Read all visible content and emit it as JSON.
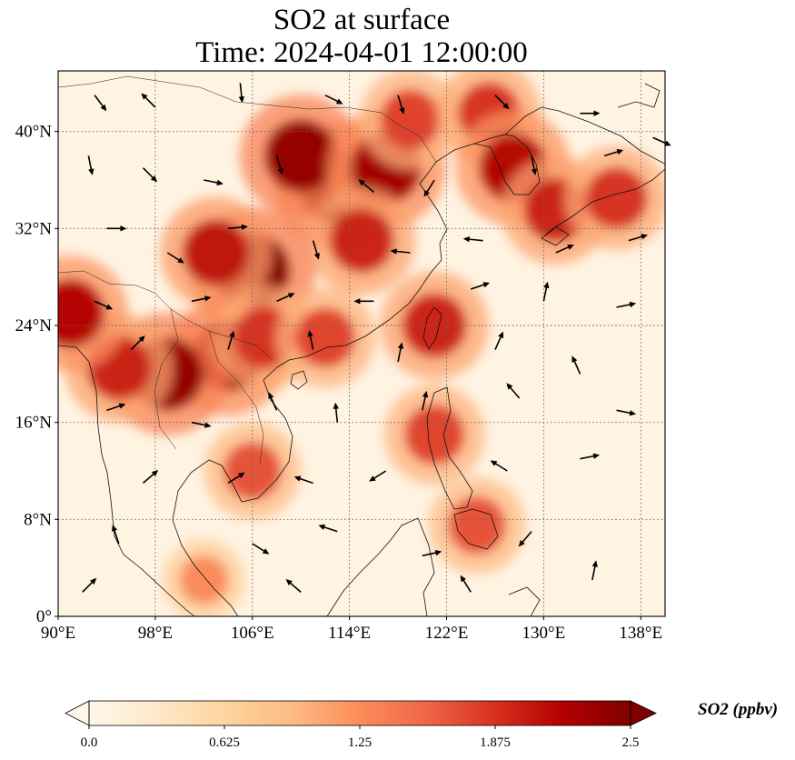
{
  "chart_data": {
    "type": "heatmap",
    "title": "SO2 at surface",
    "subtitle": "Time: 2024-04-01 12:00:00",
    "projection": "plate-carree map with coastlines, country borders and wind vectors",
    "x_axis": {
      "ticks": [
        90,
        98,
        106,
        114,
        122,
        130,
        138
      ],
      "tick_labels": [
        "90°E",
        "98°E",
        "106°E",
        "114°E",
        "122°E",
        "130°E",
        "138°E"
      ],
      "range": [
        90,
        140
      ]
    },
    "y_axis": {
      "ticks": [
        0,
        8,
        16,
        24,
        32,
        40
      ],
      "tick_labels": [
        "0°",
        "8°N",
        "16°N",
        "24°N",
        "32°N",
        "40°N"
      ],
      "range": [
        0,
        45
      ]
    },
    "grid": "dotted gray gridlines at tick positions",
    "colorbar": {
      "label": "SO2 (ppbv)",
      "colormap": "OrRd",
      "range": [
        0.0,
        2.5
      ],
      "ticks": [
        0.0,
        0.625,
        1.25,
        1.875,
        2.5
      ],
      "tick_labels": [
        "0.0",
        "0.625",
        "1.25",
        "1.875",
        "2.5"
      ],
      "extend": "both",
      "colors": [
        "#fff7ec",
        "#fee8c8",
        "#fdd49e",
        "#fdbb84",
        "#fc8d59",
        "#ef6548",
        "#d7301f",
        "#b30000",
        "#7f0000"
      ]
    },
    "hotspots": [
      {
        "lon": 113,
        "lat": 35.5,
        "value": 2.5
      },
      {
        "lon": 110,
        "lat": 38,
        "value": 2.4
      },
      {
        "lon": 117,
        "lat": 37,
        "value": 2.3
      },
      {
        "lon": 115,
        "lat": 31,
        "value": 2.0
      },
      {
        "lon": 106,
        "lat": 28.5,
        "value": 2.5
      },
      {
        "lon": 103,
        "lat": 30,
        "value": 2.1
      },
      {
        "lon": 104,
        "lat": 21.5,
        "value": 2.3
      },
      {
        "lon": 99,
        "lat": 20,
        "value": 2.4
      },
      {
        "lon": 95,
        "lat": 20.5,
        "value": 2.0
      },
      {
        "lon": 91,
        "lat": 25,
        "value": 2.2
      },
      {
        "lon": 107,
        "lat": 23,
        "value": 1.9
      },
      {
        "lon": 112,
        "lat": 23,
        "value": 1.8
      },
      {
        "lon": 119,
        "lat": 41,
        "value": 1.8
      },
      {
        "lon": 125.5,
        "lat": 41.5,
        "value": 1.9
      },
      {
        "lon": 127.5,
        "lat": 37,
        "value": 2.2
      },
      {
        "lon": 131,
        "lat": 33.5,
        "value": 2.0
      },
      {
        "lon": 136,
        "lat": 34.5,
        "value": 1.9
      },
      {
        "lon": 121,
        "lat": 24,
        "value": 2.0
      },
      {
        "lon": 121,
        "lat": 15,
        "value": 1.8
      },
      {
        "lon": 124.5,
        "lat": 7.5,
        "value": 1.7
      },
      {
        "lon": 106,
        "lat": 12,
        "value": 1.7
      },
      {
        "lon": 102,
        "lat": 3,
        "value": 1.3
      }
    ],
    "wind_vectors": [
      {
        "lon": 93,
        "lat": 43,
        "u": 0.6,
        "v": -0.8
      },
      {
        "lon": 98,
        "lat": 42,
        "u": -0.5,
        "v": 0.5
      },
      {
        "lon": 105,
        "lat": 44,
        "u": 0.1,
        "v": -1.0
      },
      {
        "lon": 112,
        "lat": 43,
        "u": 0.8,
        "v": -0.4
      },
      {
        "lon": 118,
        "lat": 43,
        "u": 0.3,
        "v": -1.0
      },
      {
        "lon": 126,
        "lat": 43,
        "u": 0.6,
        "v": -0.6
      },
      {
        "lon": 133,
        "lat": 41.5,
        "u": 1.0,
        "v": 0.0
      },
      {
        "lon": 139,
        "lat": 39.5,
        "u": 0.9,
        "v": -0.4
      },
      {
        "lon": 92.5,
        "lat": 38,
        "u": 0.2,
        "v": -1.0
      },
      {
        "lon": 97,
        "lat": 37,
        "u": 0.7,
        "v": -0.7
      },
      {
        "lon": 102,
        "lat": 36,
        "u": 1.0,
        "v": -0.2
      },
      {
        "lon": 108,
        "lat": 38,
        "u": 0.3,
        "v": -1.0
      },
      {
        "lon": 116,
        "lat": 35,
        "u": -0.6,
        "v": 0.5
      },
      {
        "lon": 121,
        "lat": 36,
        "u": -0.5,
        "v": -0.8
      },
      {
        "lon": 129,
        "lat": 38,
        "u": 0.2,
        "v": -1.0
      },
      {
        "lon": 135,
        "lat": 38,
        "u": 1.0,
        "v": 0.3
      },
      {
        "lon": 94,
        "lat": 32,
        "u": 1.0,
        "v": 0.0
      },
      {
        "lon": 99,
        "lat": 30,
        "u": 0.8,
        "v": -0.5
      },
      {
        "lon": 104,
        "lat": 32,
        "u": 1.0,
        "v": 0.1
      },
      {
        "lon": 111,
        "lat": 31,
        "u": 0.3,
        "v": -1.0
      },
      {
        "lon": 119,
        "lat": 30,
        "u": -1.0,
        "v": 0.1
      },
      {
        "lon": 125,
        "lat": 31,
        "u": -1.0,
        "v": 0.1
      },
      {
        "lon": 131,
        "lat": 30,
        "u": 0.9,
        "v": 0.4
      },
      {
        "lon": 137,
        "lat": 31,
        "u": 1.0,
        "v": 0.3
      },
      {
        "lon": 93,
        "lat": 26,
        "u": 0.9,
        "v": -0.4
      },
      {
        "lon": 101,
        "lat": 26,
        "u": 1.0,
        "v": 0.2
      },
      {
        "lon": 108,
        "lat": 26,
        "u": 0.9,
        "v": 0.4
      },
      {
        "lon": 116,
        "lat": 26,
        "u": -1.0,
        "v": 0.0
      },
      {
        "lon": 124,
        "lat": 27,
        "u": 0.9,
        "v": 0.3
      },
      {
        "lon": 130,
        "lat": 26,
        "u": 0.2,
        "v": 1.0
      },
      {
        "lon": 136,
        "lat": 25.5,
        "u": 1.0,
        "v": 0.2
      },
      {
        "lon": 96,
        "lat": 22,
        "u": 0.7,
        "v": 0.7
      },
      {
        "lon": 104,
        "lat": 22,
        "u": 0.3,
        "v": 1.0
      },
      {
        "lon": 111,
        "lat": 22,
        "u": -0.2,
        "v": 1.0
      },
      {
        "lon": 118,
        "lat": 21,
        "u": 0.2,
        "v": 1.0
      },
      {
        "lon": 126,
        "lat": 22,
        "u": 0.4,
        "v": 0.9
      },
      {
        "lon": 133,
        "lat": 20,
        "u": -0.4,
        "v": 0.9
      },
      {
        "lon": 94,
        "lat": 17,
        "u": 0.9,
        "v": 0.3
      },
      {
        "lon": 101,
        "lat": 16,
        "u": 1.0,
        "v": -0.2
      },
      {
        "lon": 108,
        "lat": 17,
        "u": -0.4,
        "v": 0.9
      },
      {
        "lon": 113,
        "lat": 16,
        "u": -0.1,
        "v": 1.0
      },
      {
        "lon": 120,
        "lat": 17,
        "u": 0.2,
        "v": 0.9
      },
      {
        "lon": 128,
        "lat": 18,
        "u": -0.6,
        "v": 0.7
      },
      {
        "lon": 136,
        "lat": 17,
        "u": 1.0,
        "v": -0.2
      },
      {
        "lon": 97,
        "lat": 11,
        "u": 0.7,
        "v": 0.6
      },
      {
        "lon": 104,
        "lat": 11,
        "u": 0.8,
        "v": 0.5
      },
      {
        "lon": 111,
        "lat": 11,
        "u": -0.9,
        "v": 0.3
      },
      {
        "lon": 117,
        "lat": 12,
        "u": -0.8,
        "v": -0.5
      },
      {
        "lon": 127,
        "lat": 12,
        "u": -0.8,
        "v": 0.5
      },
      {
        "lon": 133,
        "lat": 13,
        "u": 1.0,
        "v": 0.2
      },
      {
        "lon": 95,
        "lat": 6,
        "u": -0.3,
        "v": 0.9
      },
      {
        "lon": 106,
        "lat": 6,
        "u": 0.8,
        "v": -0.5
      },
      {
        "lon": 113,
        "lat": 7,
        "u": -0.9,
        "v": 0.3
      },
      {
        "lon": 120,
        "lat": 5,
        "u": 0.9,
        "v": 0.2
      },
      {
        "lon": 129,
        "lat": 7,
        "u": -0.6,
        "v": -0.7
      },
      {
        "lon": 92,
        "lat": 2,
        "u": 0.7,
        "v": 0.7
      },
      {
        "lon": 110,
        "lat": 2,
        "u": -0.7,
        "v": 0.6
      },
      {
        "lon": 124,
        "lat": 2,
        "u": -0.5,
        "v": 0.8
      },
      {
        "lon": 134,
        "lat": 3,
        "u": 0.2,
        "v": 1.0
      }
    ]
  }
}
